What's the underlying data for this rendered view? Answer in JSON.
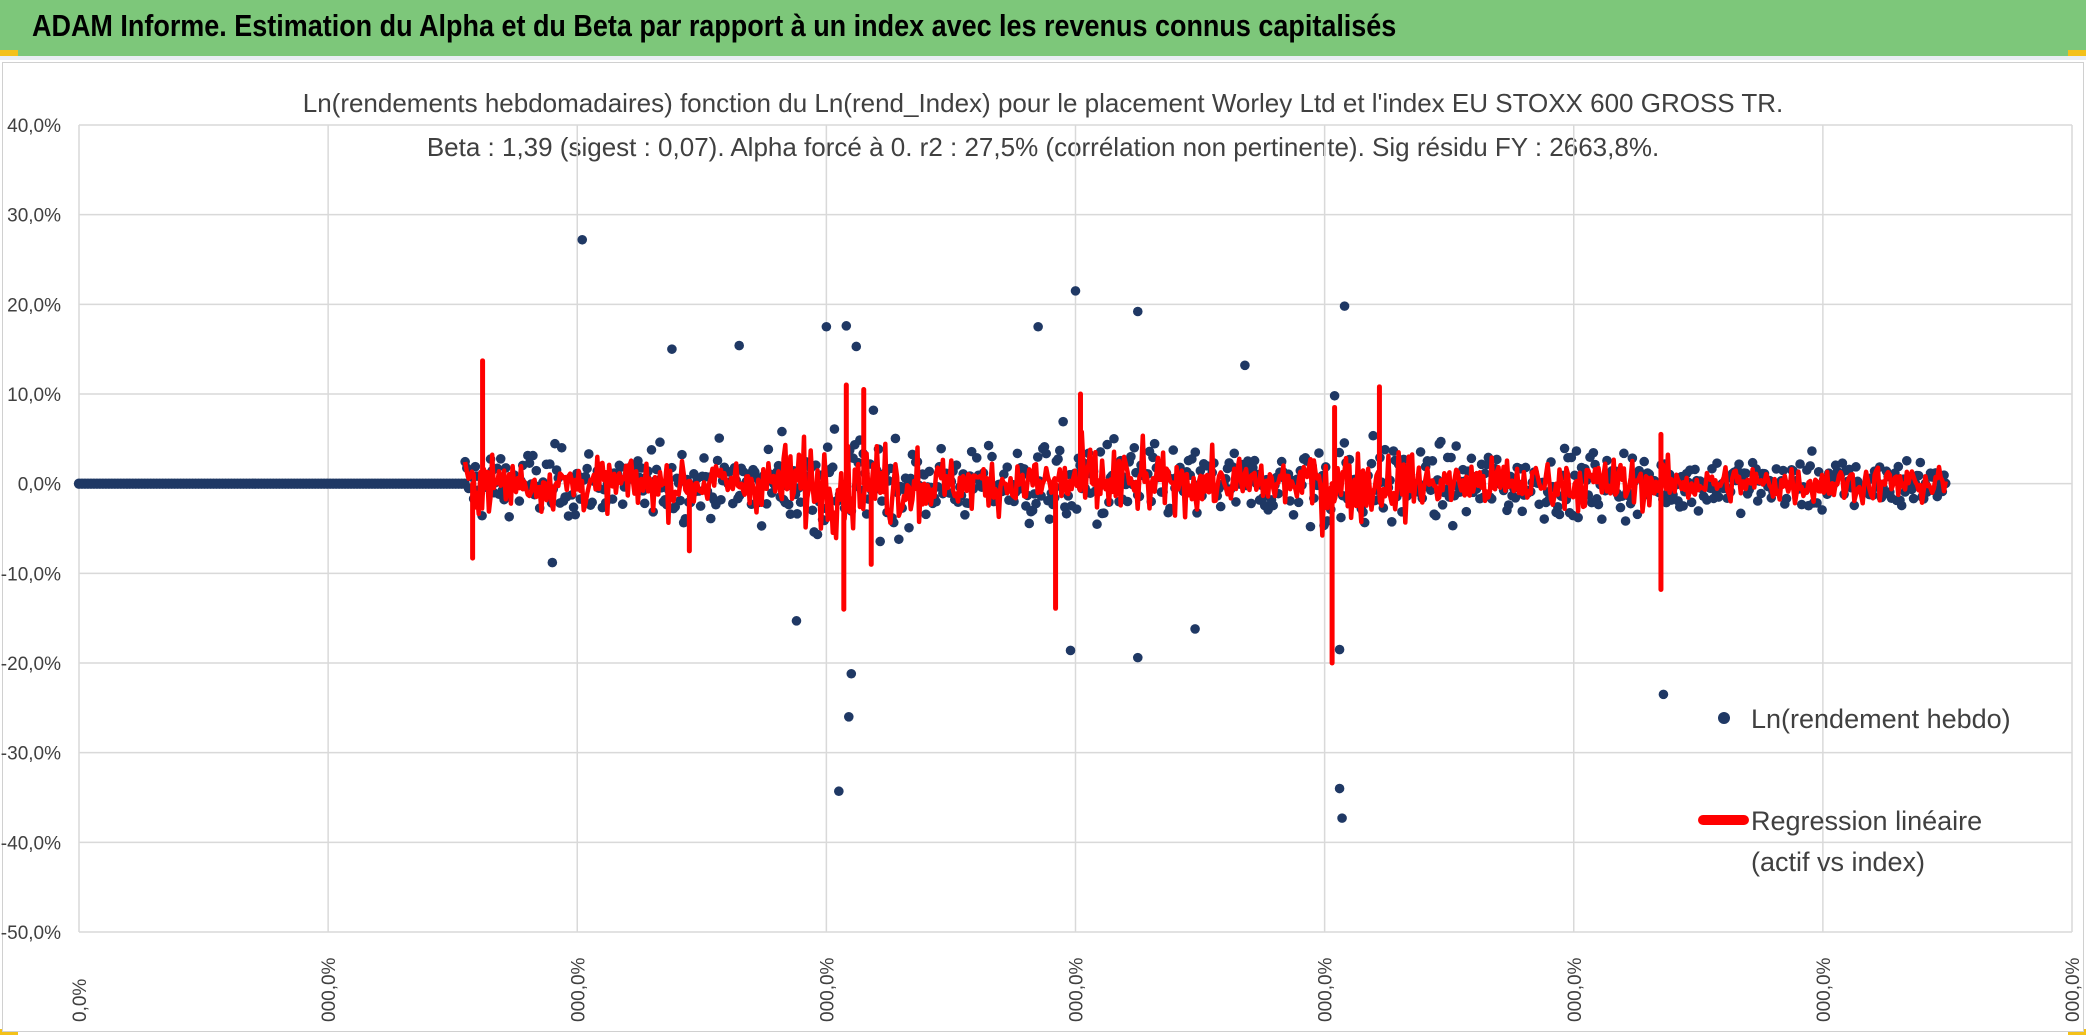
{
  "banner": {
    "title": "ADAM Informe. Estimation du Alpha et du Beta par rapport à un index avec les revenus connus capitalisés",
    "color": "#7dc77a"
  },
  "chart_data": {
    "type": "scatter",
    "title": "Ln(rendements hebdomadaires) fonction du Ln(rend_Index) pour le placement Worley Ltd et l'index EU STOXX 600 GROSS TR.",
    "subtitle": "Beta : 1,39 (sigest : 0,07). Alpha forcé à 0. r2 : 27,5% (corrélation non pertinente). Sig résidu FY : 2663,8%.",
    "y_ticks": [
      "40,0%",
      "30,0%",
      "20,0%",
      "10,0%",
      "0,0%",
      "-10,0%",
      "-20,0%",
      "-30,0%",
      "-40,0%",
      "-50,0%"
    ],
    "ylim": [
      -50,
      40
    ],
    "x_ticks": [
      "0,0%",
      "000,0%",
      "000,0%",
      "000,0%",
      "000,0%",
      "000,0%",
      "000,0%",
      "000,0%",
      "000,0%"
    ],
    "xlim": [
      0,
      8
    ],
    "grid": true,
    "legend_position": "bottom-right",
    "series": [
      {
        "name": "Ln(rendement hebdo)",
        "kind": "scatter",
        "color": "#1f3864",
        "flat_segment": {
          "x_start": 0.0,
          "x_end": 1.55,
          "y": 0
        },
        "outliers": [
          {
            "x": 2.02,
            "y": 27.2
          },
          {
            "x": 3.08,
            "y": 17.6
          },
          {
            "x": 3.12,
            "y": 15.3
          },
          {
            "x": 4.0,
            "y": 21.5
          },
          {
            "x": 4.25,
            "y": 19.2
          },
          {
            "x": 5.08,
            "y": 19.8
          },
          {
            "x": 3.05,
            "y": -34.3
          },
          {
            "x": 3.09,
            "y": -26.0
          },
          {
            "x": 3.1,
            "y": -21.2
          },
          {
            "x": 5.06,
            "y": -34.0
          },
          {
            "x": 5.07,
            "y": -37.3
          },
          {
            "x": 6.36,
            "y": -23.5
          },
          {
            "x": 2.88,
            "y": -15.3
          },
          {
            "x": 4.48,
            "y": -16.2
          },
          {
            "x": 3.98,
            "y": -18.6
          },
          {
            "x": 4.25,
            "y": -19.4
          },
          {
            "x": 5.06,
            "y": -18.5
          },
          {
            "x": 2.38,
            "y": 15.0
          },
          {
            "x": 2.65,
            "y": 15.4
          },
          {
            "x": 3.0,
            "y": 17.5
          },
          {
            "x": 3.85,
            "y": 17.5
          },
          {
            "x": 4.68,
            "y": 13.2
          },
          {
            "x": 5.04,
            "y": 9.8
          },
          {
            "x": 1.9,
            "y": -8.8
          }
        ]
      },
      {
        "name": "Regression linéaire (actif vs index)",
        "legend_lines": [
          "Regression linéaire",
          "(actif vs index)"
        ],
        "kind": "line",
        "color": "#ff0000",
        "spikes": [
          {
            "x": 1.62,
            "y": 13.7
          },
          {
            "x": 1.58,
            "y": -8.3
          },
          {
            "x": 3.08,
            "y": 11.0
          },
          {
            "x": 3.07,
            "y": -14.0
          },
          {
            "x": 3.15,
            "y": 10.5
          },
          {
            "x": 3.18,
            "y": -9.0
          },
          {
            "x": 3.92,
            "y": -13.9
          },
          {
            "x": 5.03,
            "y": -20.0
          },
          {
            "x": 5.04,
            "y": 8.5
          },
          {
            "x": 5.22,
            "y": 10.8
          },
          {
            "x": 6.35,
            "y": -11.8
          },
          {
            "x": 6.35,
            "y": 5.5
          },
          {
            "x": 4.02,
            "y": 10.0
          },
          {
            "x": 2.45,
            "y": -7.5
          }
        ]
      }
    ]
  }
}
